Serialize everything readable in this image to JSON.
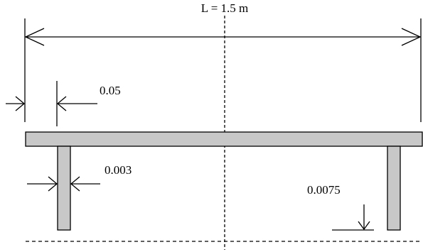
{
  "labels": {
    "span": "L = 1.5 m",
    "edge_offset": "0.05",
    "leg_thickness": "0.003",
    "clearance": "0.0075"
  },
  "colors": {
    "member_fill": "#c8c8c8",
    "stroke": "#000000",
    "background": "#ffffff"
  }
}
